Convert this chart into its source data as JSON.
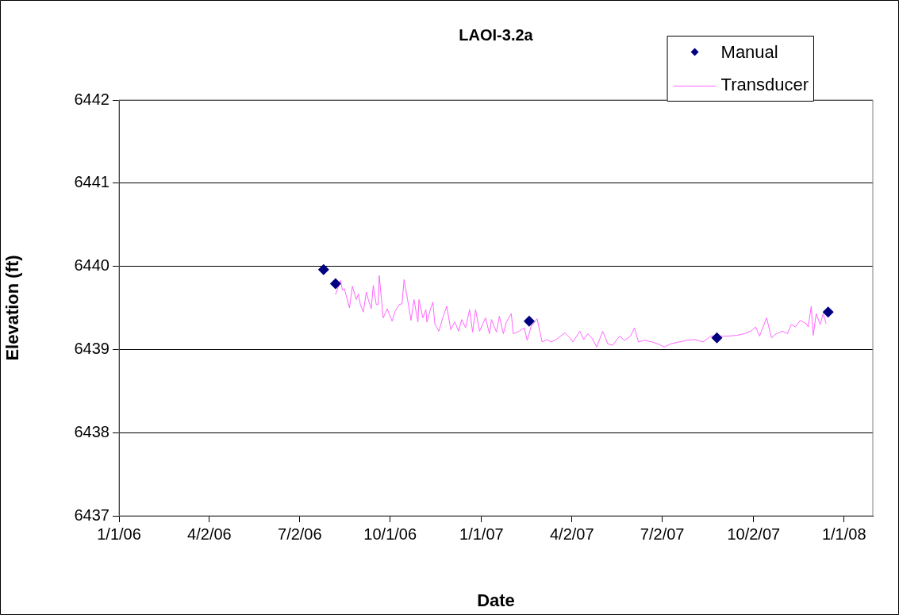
{
  "chart_data": {
    "type": "line",
    "title": "LAOI-3.2a",
    "xlabel": "Date",
    "ylabel": "Elevation (ft)",
    "xlim": [
      "2006-01-01",
      "2008-01-30"
    ],
    "xticks": [
      {
        "value": "2006-01-01",
        "label": "1/1/06"
      },
      {
        "value": "2006-04-02",
        "label": "4/2/06"
      },
      {
        "value": "2006-07-02",
        "label": "7/2/06"
      },
      {
        "value": "2006-10-01",
        "label": "10/1/06"
      },
      {
        "value": "2007-01-01",
        "label": "1/1/07"
      },
      {
        "value": "2007-04-02",
        "label": "4/2/07"
      },
      {
        "value": "2007-07-02",
        "label": "7/2/07"
      },
      {
        "value": "2007-10-02",
        "label": "10/2/07"
      },
      {
        "value": "2008-01-01",
        "label": "1/1/08"
      }
    ],
    "ylim": [
      6437,
      6442
    ],
    "yticks": [
      6437,
      6438,
      6439,
      6440,
      6441,
      6442
    ],
    "grid": "y",
    "legend": "top right",
    "series": [
      {
        "name": "Manual",
        "type": "scatter",
        "marker": "diamond",
        "color": "#000080",
        "x": [
          "2006-07-26",
          "2006-08-07",
          "2007-02-18",
          "2007-08-26",
          "2007-12-16"
        ],
        "values": [
          6439.96,
          6439.79,
          6439.34,
          6439.14,
          6439.45
        ]
      },
      {
        "name": "Transducer",
        "type": "line",
        "marker": "none",
        "color": "#ff66ff",
        "x": [
          "2006-08-07",
          "2006-08-12",
          "2006-08-14",
          "2006-08-16",
          "2006-08-21",
          "2006-08-24",
          "2006-08-28",
          "2006-08-30",
          "2006-09-01",
          "2006-09-04",
          "2006-09-07",
          "2006-09-09",
          "2006-09-12",
          "2006-09-14",
          "2006-09-17",
          "2006-09-19",
          "2006-09-20",
          "2006-09-24",
          "2006-09-28",
          "2006-10-03",
          "2006-10-06",
          "2006-10-10",
          "2006-10-13",
          "2006-10-15",
          "2006-10-19",
          "2006-10-22",
          "2006-10-25",
          "2006-10-29",
          "2006-10-30",
          "2006-11-03",
          "2006-11-06",
          "2006-11-07",
          "2006-11-11",
          "2006-11-13",
          "2006-11-15",
          "2006-11-19",
          "2006-11-23",
          "2006-11-27",
          "2006-12-01",
          "2006-12-05",
          "2006-12-09",
          "2006-12-12",
          "2006-12-16",
          "2006-12-20",
          "2006-12-23",
          "2006-12-26",
          "2006-12-30",
          "2007-01-05",
          "2007-01-09",
          "2007-01-11",
          "2007-01-16",
          "2007-01-19",
          "2007-01-23",
          "2007-01-26",
          "2007-01-31",
          "2007-02-02",
          "2007-02-08",
          "2007-02-13",
          "2007-02-16",
          "2007-02-20",
          "2007-02-26",
          "2007-03-03",
          "2007-03-08",
          "2007-03-12",
          "2007-03-17",
          "2007-03-26",
          "2007-03-31",
          "2007-04-03",
          "2007-04-10",
          "2007-04-14",
          "2007-04-18",
          "2007-04-22",
          "2007-04-27",
          "2007-05-03",
          "2007-05-08",
          "2007-05-13",
          "2007-05-20",
          "2007-05-25",
          "2007-05-31",
          "2007-06-04",
          "2007-06-08",
          "2007-06-14",
          "2007-06-22",
          "2007-06-29",
          "2007-07-04",
          "2007-07-11",
          "2007-07-19",
          "2007-07-27",
          "2007-08-04",
          "2007-08-12",
          "2007-08-20",
          "2007-09-05",
          "2007-09-15",
          "2007-09-23",
          "2007-09-29",
          "2007-10-04",
          "2007-10-08",
          "2007-10-15",
          "2007-10-20",
          "2007-10-25",
          "2007-10-31",
          "2007-11-05",
          "2007-11-09",
          "2007-11-13",
          "2007-11-18",
          "2007-11-24",
          "2007-11-26",
          "2007-11-29",
          "2007-12-01",
          "2007-12-04",
          "2007-12-08",
          "2007-12-11",
          "2007-12-14"
        ],
        "values": [
          6439.66,
          6439.83,
          6439.71,
          6439.73,
          6439.5,
          6439.76,
          6439.6,
          6439.67,
          6439.54,
          6439.45,
          6439.69,
          6439.6,
          6439.49,
          6439.77,
          6439.54,
          6439.54,
          6439.89,
          6439.38,
          6439.49,
          6439.34,
          6439.46,
          6439.54,
          6439.55,
          6439.84,
          6439.57,
          6439.35,
          6439.6,
          6439.33,
          6439.6,
          6439.38,
          6439.48,
          6439.33,
          6439.5,
          6439.57,
          6439.31,
          6439.22,
          6439.38,
          6439.52,
          6439.24,
          6439.33,
          6439.22,
          6439.36,
          6439.26,
          6439.48,
          6439.21,
          6439.48,
          6439.22,
          6439.38,
          6439.19,
          6439.36,
          6439.21,
          6439.4,
          6439.19,
          6439.33,
          6439.43,
          6439.19,
          6439.22,
          6439.26,
          6439.11,
          6439.28,
          6439.37,
          6439.09,
          6439.12,
          6439.09,
          6439.12,
          6439.2,
          6439.14,
          6439.09,
          6439.22,
          6439.12,
          6439.19,
          6439.14,
          6439.03,
          6439.22,
          6439.07,
          6439.05,
          6439.16,
          6439.11,
          6439.16,
          6439.26,
          6439.09,
          6439.11,
          6439.09,
          6439.06,
          6439.03,
          6439.07,
          6439.09,
          6439.11,
          6439.12,
          6439.09,
          6439.16,
          6439.16,
          6439.17,
          6439.19,
          6439.22,
          6439.27,
          6439.16,
          6439.38,
          6439.14,
          6439.19,
          6439.22,
          6439.19,
          6439.3,
          6439.27,
          6439.35,
          6439.31,
          6439.27,
          6439.52,
          6439.17,
          6439.43,
          6439.3,
          6439.43,
          6439.31
        ]
      }
    ]
  }
}
